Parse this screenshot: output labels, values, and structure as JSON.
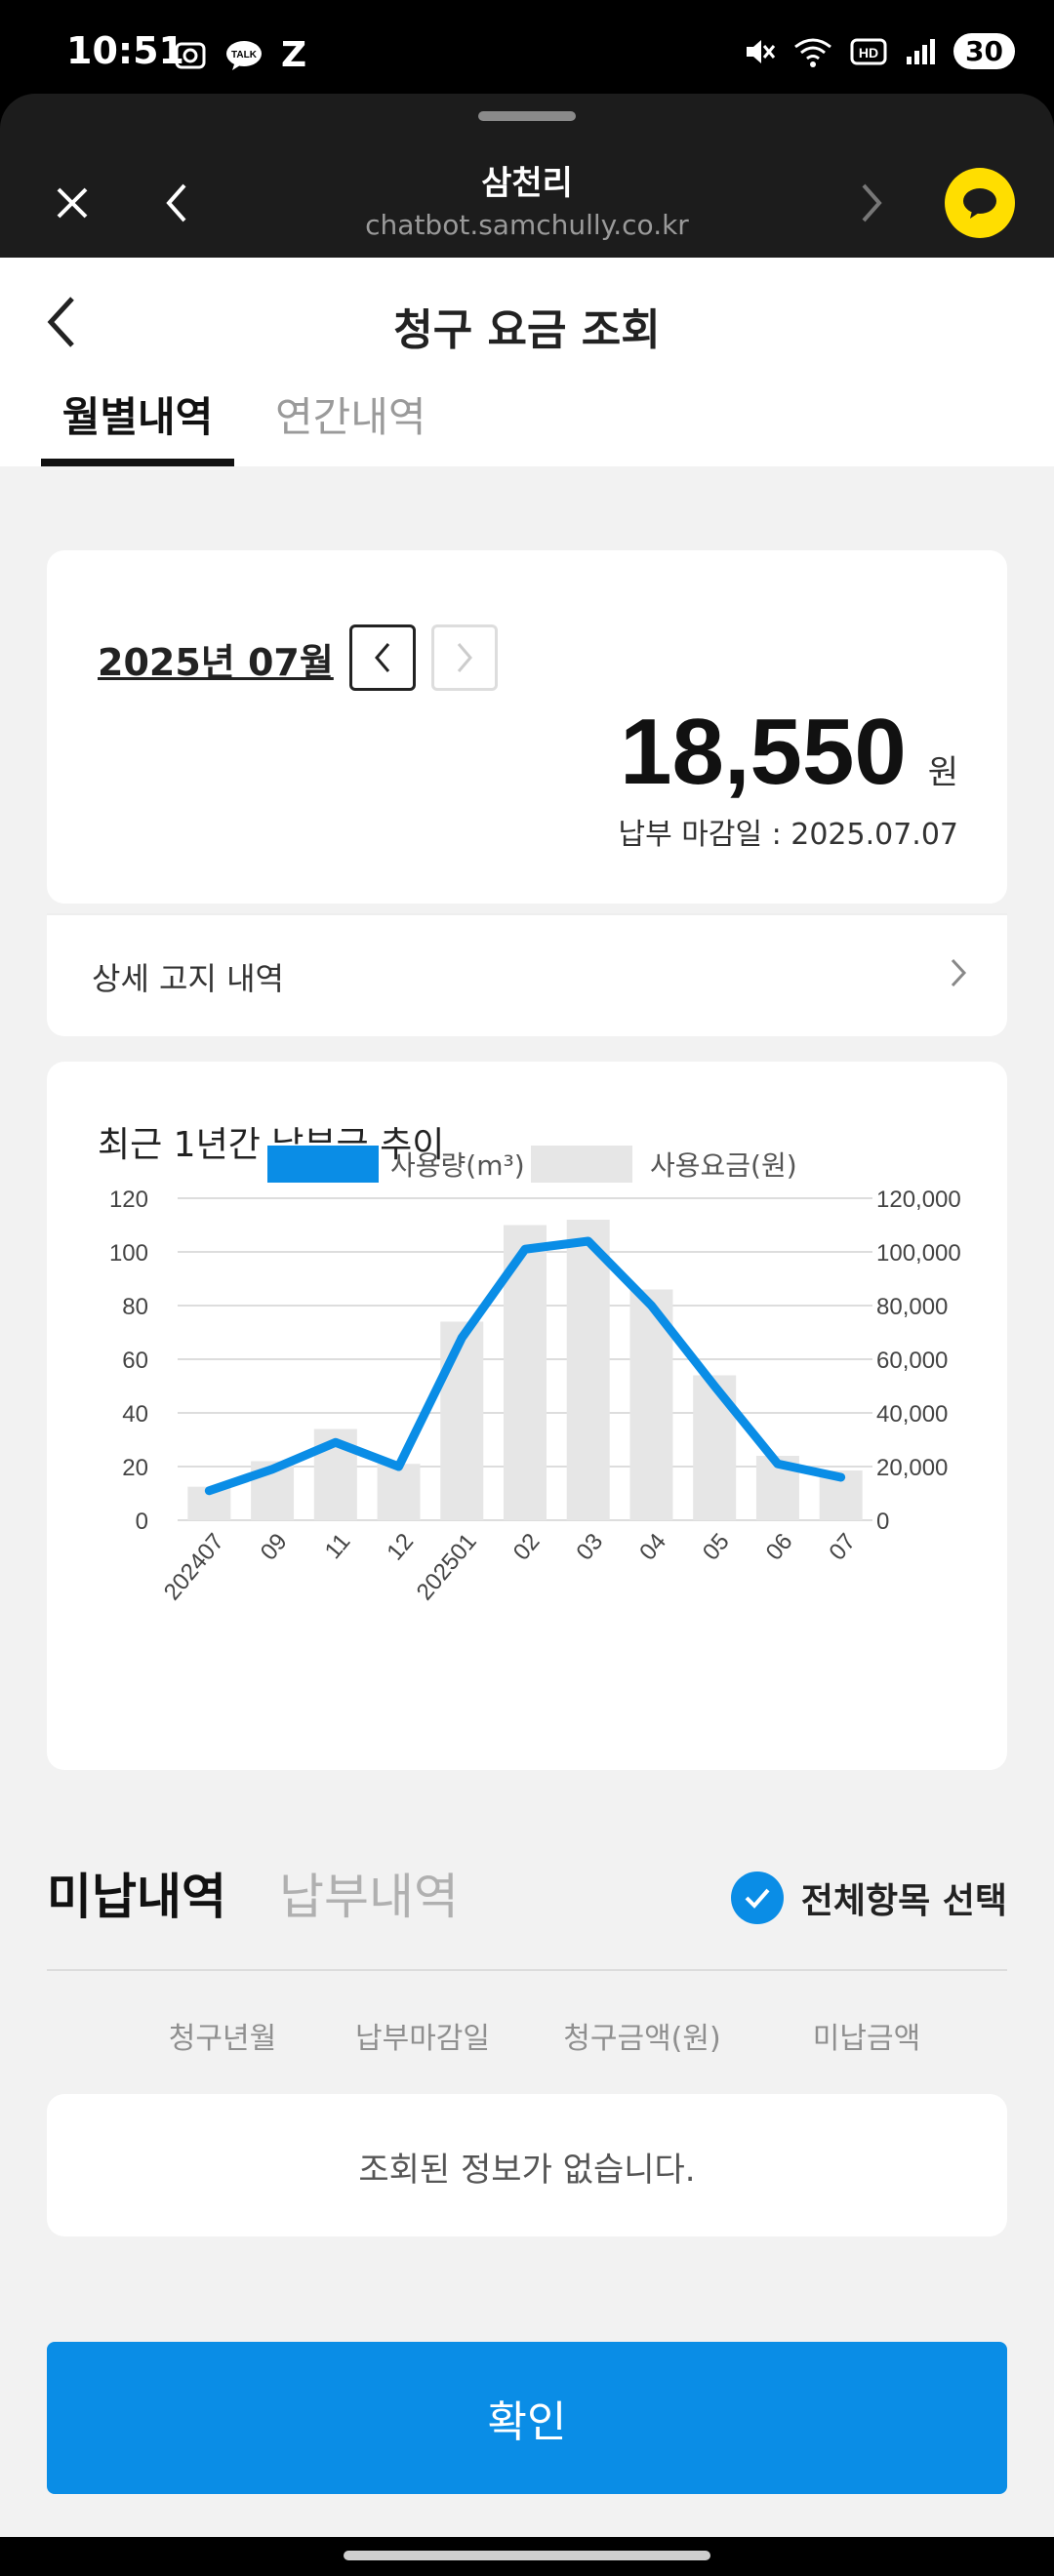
{
  "status_bar": {
    "time": "10:51",
    "talk_label": "TALK",
    "z_label": "Z",
    "hd_label": "HD",
    "battery": "30"
  },
  "browser": {
    "title": "삼천리",
    "url": "chatbot.samchully.co.kr"
  },
  "page": {
    "title": "청구 요금 조회",
    "tabs": [
      "월별내역",
      "연간내역"
    ]
  },
  "summary": {
    "month": "2025년 07월",
    "amount": "18,550",
    "unit": "원",
    "due_date": "납부 마감일 : 2025.07.07",
    "detail_label": "상세 고지 내역"
  },
  "chart_title": "최근 1년간 납부금 추이",
  "chart_data": {
    "type": "bar+line",
    "categories": [
      "202407",
      "09",
      "11",
      "12",
      "202501",
      "02",
      "03",
      "04",
      "05",
      "06",
      "07"
    ],
    "series": [
      {
        "name": "사용량(m³)",
        "type": "line",
        "axis": "left",
        "color": "#0a8de6",
        "values": [
          11,
          19,
          29,
          20,
          68,
          101,
          104,
          80,
          50,
          21,
          16
        ]
      },
      {
        "name": "사용요금(원)",
        "type": "bar",
        "axis": "right",
        "color": "#e6e6e6",
        "values": [
          12500,
          22000,
          34000,
          21000,
          74000,
          110000,
          112000,
          86000,
          54000,
          24000,
          18550
        ]
      }
    ],
    "ylim_left": [
      0,
      120
    ],
    "ylim_right": [
      0,
      120000
    ],
    "yticks_left": [
      "0",
      "20",
      "40",
      "60",
      "80",
      "100",
      "120"
    ],
    "yticks_right": [
      "0",
      "20,000",
      "40,000",
      "60,000",
      "80,000",
      "100,000",
      "120,000"
    ],
    "legend_position": "top-center",
    "grid": true
  },
  "billing": {
    "tabs": [
      "미납내역",
      "납부내역"
    ],
    "select_all": "전체항목 선택",
    "columns": [
      "청구년월",
      "납부마감일",
      "청구금액(원)",
      "미납금액"
    ],
    "empty_message": "조회된 정보가 없습니다."
  },
  "confirm_label": "확인",
  "colors": {
    "accent": "#0a8de6",
    "kakao": "#ffde00"
  }
}
